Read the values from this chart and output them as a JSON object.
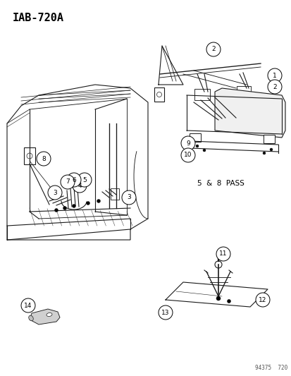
{
  "title": "IAB-720A",
  "background_color": "#ffffff",
  "text_color": "#000000",
  "diagram_color": "#1a1a1a",
  "fig_width": 4.14,
  "fig_height": 5.33,
  "dpi": 100,
  "bottom_right_text": "94375  720",
  "pass_text": "5  &  8  PASS",
  "line_width": 0.8
}
